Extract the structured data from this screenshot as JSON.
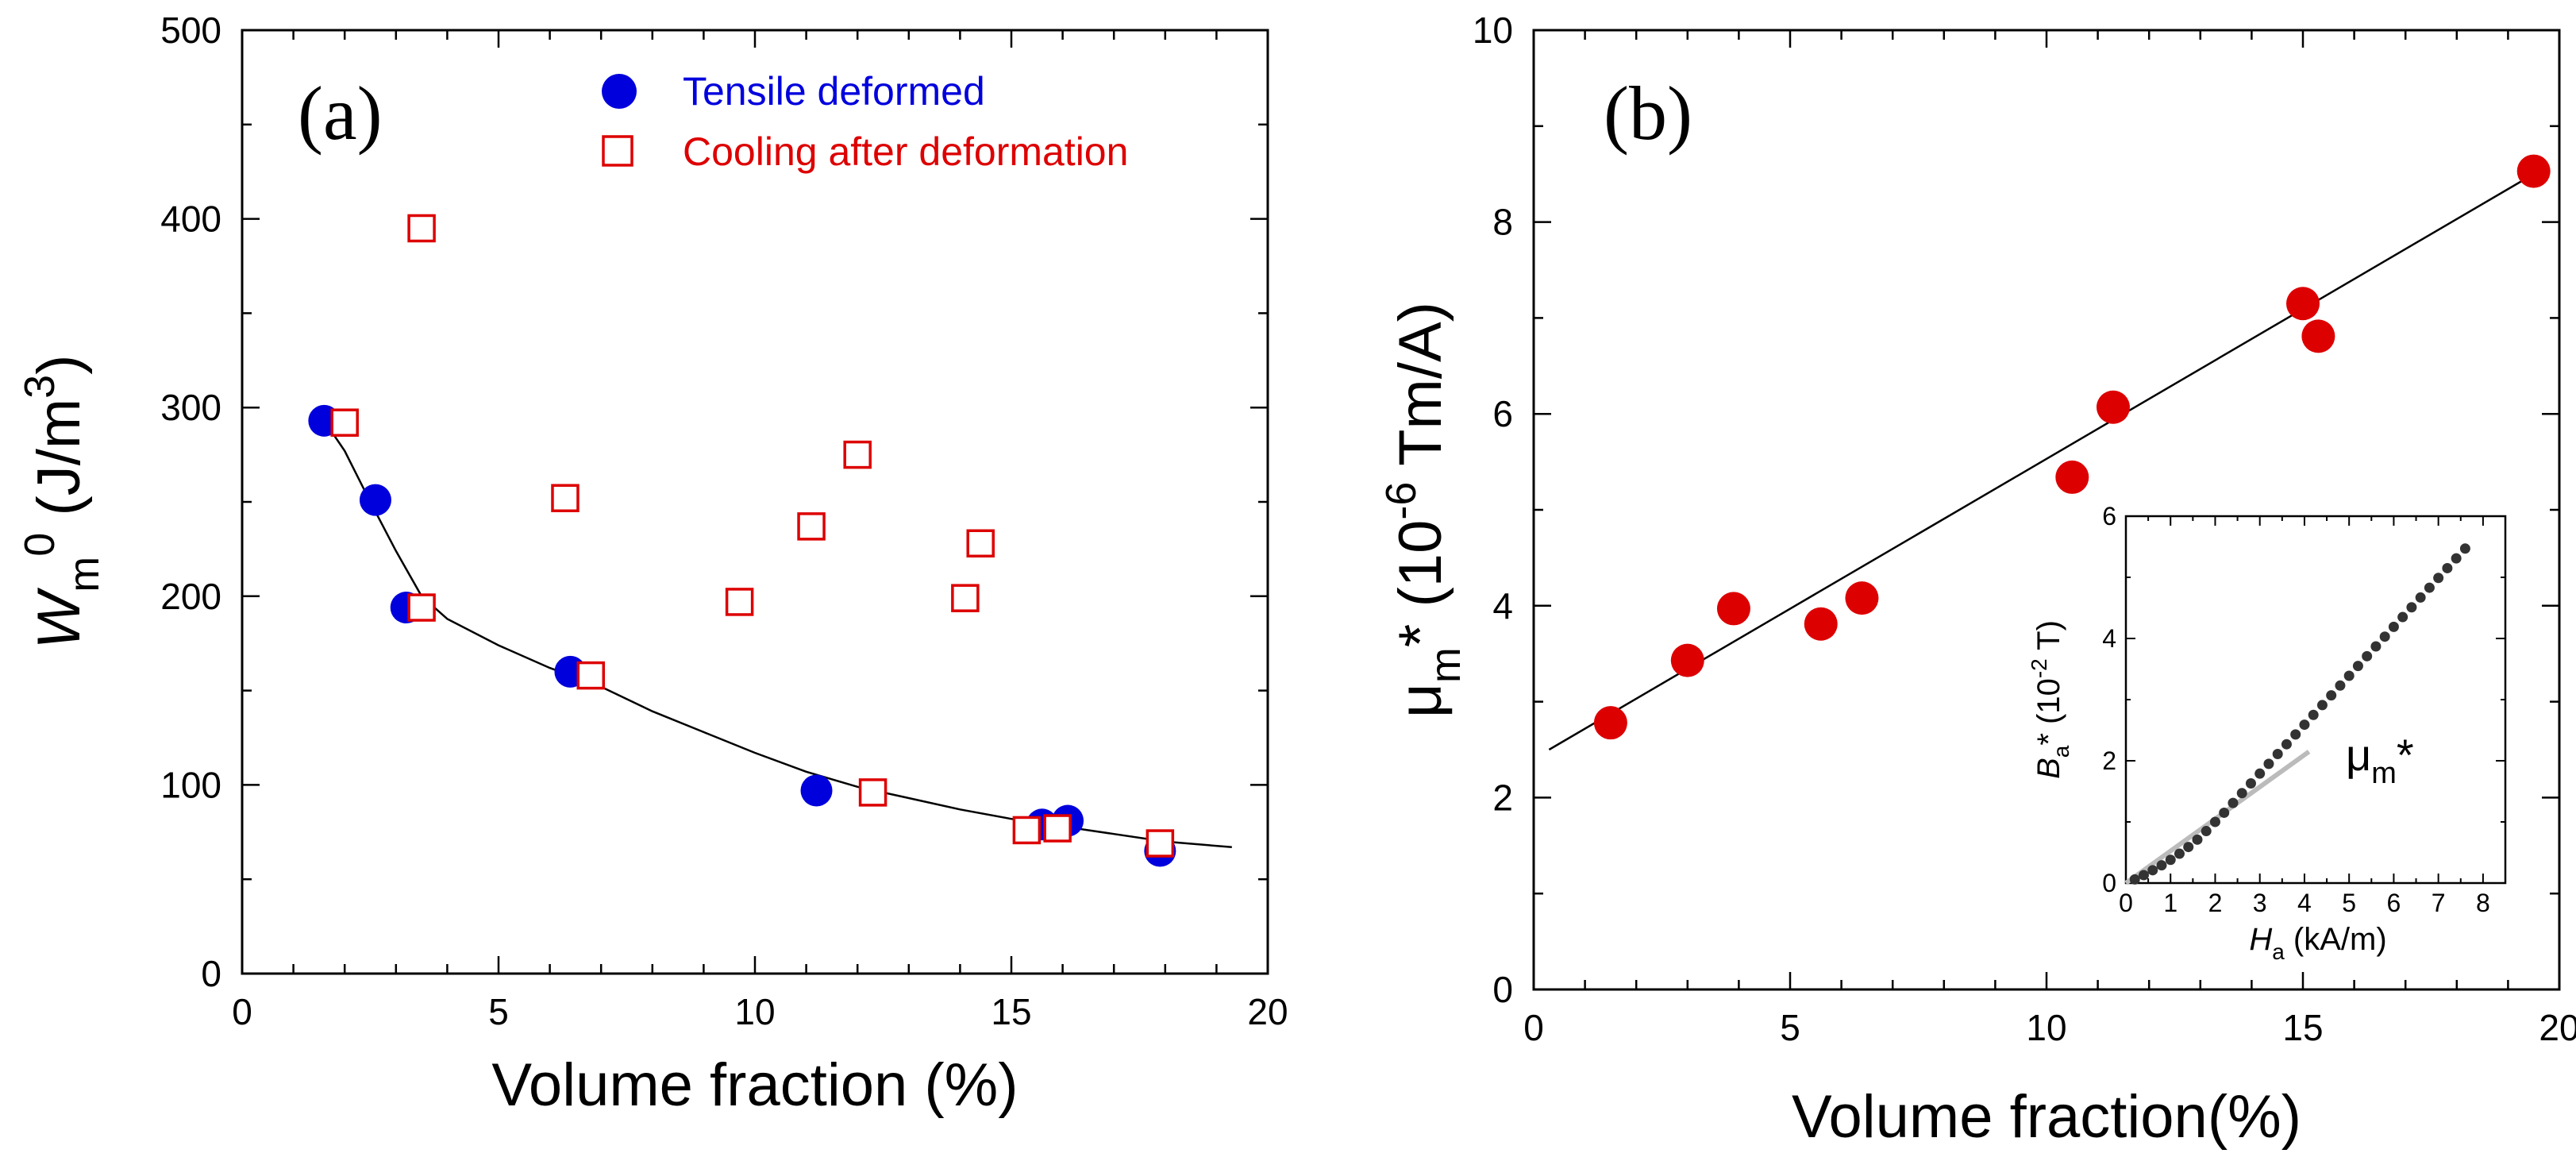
{
  "chart_data": [
    {
      "panel": "(a)",
      "type": "scatter",
      "xlabel": "Volume fraction (%)",
      "ylabel": {
        "main": "W",
        "sub": "m",
        "sup": "0",
        "unit_prefix": " (J/m",
        "unit_sup": "3",
        "unit_suffix": ")"
      },
      "xlim": [
        0,
        20
      ],
      "ylim": [
        0,
        500
      ],
      "x_ticks": [
        0,
        5,
        10,
        15,
        20
      ],
      "y_ticks": [
        0,
        100,
        200,
        300,
        400,
        500
      ],
      "x_tick_labels": [
        "0",
        "5",
        "10",
        "15",
        "20"
      ],
      "y_tick_labels": [
        "0",
        "100",
        "200",
        "300",
        "400",
        "500"
      ],
      "legend": [
        {
          "label": "Tensile deformed",
          "marker": "filled-circle",
          "color": "#0000dd"
        },
        {
          "label": "Cooling after deformation",
          "marker": "open-square",
          "color": "#dd0000"
        }
      ],
      "series": [
        {
          "name": "Tensile deformed",
          "marker": "filled-circle",
          "color": "#0000dd",
          "x": [
            1.6,
            2.6,
            3.2,
            6.4,
            11.2,
            15.6,
            16.1,
            17.9
          ],
          "y": [
            293,
            251,
            194,
            160,
            97,
            79,
            81,
            65
          ]
        },
        {
          "name": "Cooling after deformation",
          "marker": "open-square",
          "color": "#dd0000",
          "x": [
            2.0,
            3.5,
            3.5,
            6.3,
            6.8,
            9.7,
            11.1,
            12.0,
            12.3,
            14.1,
            14.4,
            15.3,
            15.9,
            17.9
          ],
          "y": [
            292,
            395,
            194,
            252,
            158,
            197,
            237,
            275,
            96,
            199,
            228,
            76,
            77,
            69
          ]
        },
        {
          "name": "fit",
          "type": "line",
          "color": "#000000",
          "x": [
            1.6,
            2.0,
            2.5,
            3.0,
            3.5,
            4.0,
            5.0,
            6.0,
            7.0,
            8.0,
            9.0,
            10.0,
            11.0,
            12.0,
            13.0,
            14.0,
            15.0,
            16.0,
            17.0,
            18.0,
            19.3
          ],
          "y": [
            293,
            277,
            250,
            224,
            200,
            188,
            174,
            162,
            152,
            139,
            128,
            117,
            107,
            99,
            93,
            87,
            82,
            78,
            74,
            70,
            67
          ]
        }
      ]
    },
    {
      "panel": "(b)",
      "type": "scatter",
      "xlabel": "Volume fraction(%)",
      "ylabel": {
        "main": "μ",
        "sub": "m",
        "suffix": "* (10",
        "sup": "-6",
        "unit": " Tm/A)"
      },
      "xlim": [
        0,
        20
      ],
      "ylim": [
        0,
        10
      ],
      "x_ticks": [
        0,
        5,
        10,
        15,
        20
      ],
      "y_ticks": [
        0,
        2,
        4,
        6,
        8,
        10
      ],
      "x_tick_labels": [
        "0",
        "5",
        "10",
        "15",
        "20"
      ],
      "y_tick_labels": [
        "0",
        "2",
        "4",
        "6",
        "8",
        "10"
      ],
      "series": [
        {
          "name": "data",
          "marker": "filled-circle",
          "color": "#dd0000",
          "x": [
            1.5,
            3.0,
            3.9,
            5.6,
            6.4,
            10.5,
            11.3,
            15.0,
            15.3,
            19.5
          ],
          "y": [
            2.78,
            3.43,
            3.97,
            3.81,
            4.08,
            5.34,
            6.07,
            7.15,
            6.81,
            8.53
          ]
        },
        {
          "name": "fit",
          "type": "line",
          "color": "#000000",
          "x": [
            0.3,
            19.5
          ],
          "y": [
            2.5,
            8.5
          ]
        }
      ],
      "inset": {
        "xlabel": {
          "main": "H",
          "sub": "a",
          "unit": " (kA/m)"
        },
        "ylabel": {
          "main": "B",
          "sub": "a",
          "suffix": "* (10",
          "sup": "-2",
          "unit": " T)"
        },
        "xlim": [
          0,
          8.5
        ],
        "ylim": [
          0,
          6
        ],
        "x_ticks": [
          0,
          1,
          2,
          3,
          4,
          5,
          6,
          7,
          8
        ],
        "y_ticks": [
          0,
          2,
          4,
          6
        ],
        "x_tick_labels": [
          "0",
          "1",
          "2",
          "3",
          "4",
          "5",
          "6",
          "7",
          "8"
        ],
        "y_tick_labels": [
          "0",
          "2",
          "4",
          "6"
        ],
        "annotation": {
          "main": "μ",
          "sub": "m",
          "suffix": "*"
        },
        "series": [
          {
            "name": "B_a*",
            "marker": "small-filled-circle",
            "color": "#333333",
            "x": [
              0.2,
              0.4,
              0.6,
              0.8,
              1.0,
              1.2,
              1.4,
              1.6,
              1.8,
              2.0,
              2.2,
              2.4,
              2.6,
              2.8,
              3.0,
              3.2,
              3.4,
              3.6,
              3.8,
              4.0,
              4.2,
              4.4,
              4.6,
              4.8,
              5.0,
              5.2,
              5.4,
              5.6,
              5.8,
              6.0,
              6.2,
              6.4,
              6.6,
              6.8,
              7.0,
              7.2,
              7.4,
              7.6
            ],
            "y": [
              0.06,
              0.13,
              0.21,
              0.29,
              0.38,
              0.48,
              0.59,
              0.71,
              0.85,
              1.0,
              1.15,
              1.31,
              1.47,
              1.63,
              1.79,
              1.95,
              2.11,
              2.27,
              2.43,
              2.59,
              2.75,
              2.91,
              3.07,
              3.23,
              3.39,
              3.55,
              3.71,
              3.87,
              4.03,
              4.19,
              4.35,
              4.51,
              4.67,
              4.83,
              4.99,
              5.15,
              5.31,
              5.47
            ]
          },
          {
            "name": "mu_m* slope",
            "type": "line",
            "color": "#bbbbbb",
            "x": [
              0.0,
              4.1
            ],
            "y": [
              0.0,
              2.15
            ]
          }
        ]
      }
    }
  ]
}
